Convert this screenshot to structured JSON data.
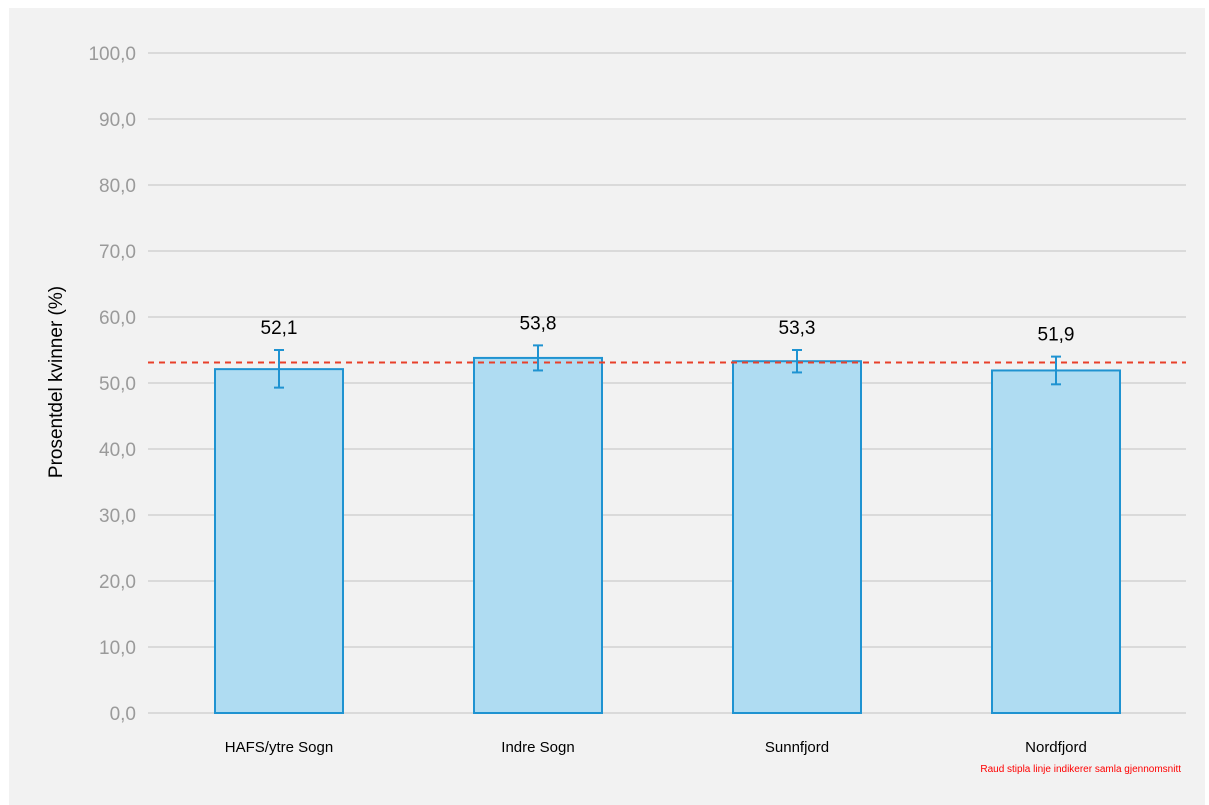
{
  "chart_data": {
    "type": "bar",
    "title": "",
    "xlabel": "",
    "ylabel": "Prosentdel kvinner (%)",
    "ylim": [
      0,
      100
    ],
    "yticks": [
      "0,0",
      "10,0",
      "20,0",
      "30,0",
      "40,0",
      "50,0",
      "60,0",
      "70,0",
      "80,0",
      "90,0",
      "100,0"
    ],
    "categories": [
      "HAFS/ytre Sogn",
      "Indre Sogn",
      "Sunnfjord",
      "Nordfjord"
    ],
    "values": [
      52.1,
      53.8,
      53.3,
      51.9
    ],
    "value_labels": [
      "52,1",
      "53,8",
      "53,3",
      "51,9"
    ],
    "error_low": [
      49.3,
      51.9,
      51.6,
      49.8
    ],
    "error_high": [
      55.0,
      55.7,
      55.0,
      54.0
    ],
    "reference_line": 53.1,
    "annotation": "Raud stipla linje indikerer samla gjennomsnitt",
    "grid": true,
    "colors": {
      "bar_fill": "#afdcf2",
      "bar_edge": "#1f93d1",
      "error_bar": "#1f93d1",
      "reference_line": "#e8402a",
      "grid": "#cccccc",
      "background": "#f2f2f2"
    }
  }
}
